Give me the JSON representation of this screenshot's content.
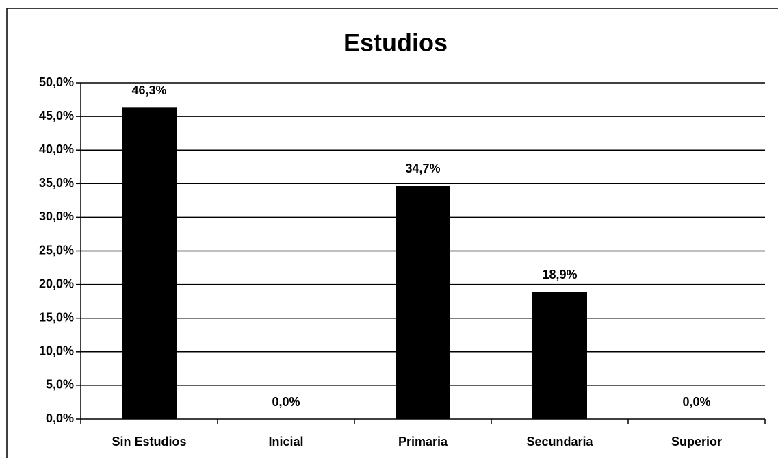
{
  "chart_data": {
    "type": "bar",
    "title": "Estudios",
    "categories": [
      "Sin Estudios",
      "Inicial",
      "Primaria",
      "Secundaria",
      "Superior"
    ],
    "values": [
      46.3,
      0,
      34.7,
      18.9,
      0
    ],
    "value_labels": [
      "46,3%",
      "0,0%",
      "34,7%",
      "18,9%",
      "0,0%"
    ],
    "color": "#000000",
    "ylim": [
      0,
      50
    ],
    "yticks": [
      {
        "value": 0,
        "label": "0,0%"
      },
      {
        "value": 5,
        "label": "5,0%"
      },
      {
        "value": 10,
        "label": "10,0%"
      },
      {
        "value": 15,
        "label": "15,0%"
      },
      {
        "value": 20,
        "label": "20,0%"
      },
      {
        "value": 25,
        "label": "25,0%"
      },
      {
        "value": 30,
        "label": "30,0%"
      },
      {
        "value": 35,
        "label": "35,0%"
      },
      {
        "value": 40,
        "label": "40,0%"
      },
      {
        "value": 45,
        "label": "45,0%"
      },
      {
        "value": 50,
        "label": "50,0%"
      }
    ],
    "grid": true
  }
}
